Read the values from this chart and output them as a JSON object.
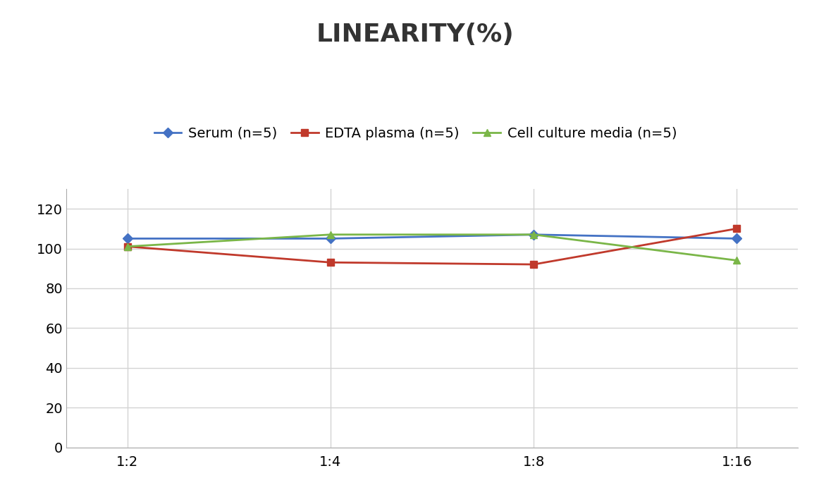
{
  "title": "LINEARITY(%)",
  "x_labels": [
    "1:2",
    "1:4",
    "1:8",
    "1:16"
  ],
  "series": [
    {
      "label": "Serum (n=5)",
      "values": [
        105,
        105,
        107,
        105
      ],
      "color": "#4472C4",
      "marker": "D",
      "marker_size": 7,
      "linewidth": 2
    },
    {
      "label": "EDTA plasma (n=5)",
      "values": [
        101,
        93,
        92,
        110
      ],
      "color": "#C0392B",
      "marker": "s",
      "marker_size": 7,
      "linewidth": 2
    },
    {
      "label": "Cell culture media (n=5)",
      "values": [
        101,
        107,
        107,
        94
      ],
      "color": "#7AB648",
      "marker": "^",
      "marker_size": 7,
      "linewidth": 2
    }
  ],
  "ylim": [
    0,
    130
  ],
  "yticks": [
    0,
    20,
    40,
    60,
    80,
    100,
    120
  ],
  "background_color": "#FFFFFF",
  "grid_color": "#D3D3D3",
  "title_fontsize": 26,
  "tick_fontsize": 14,
  "legend_fontsize": 14
}
